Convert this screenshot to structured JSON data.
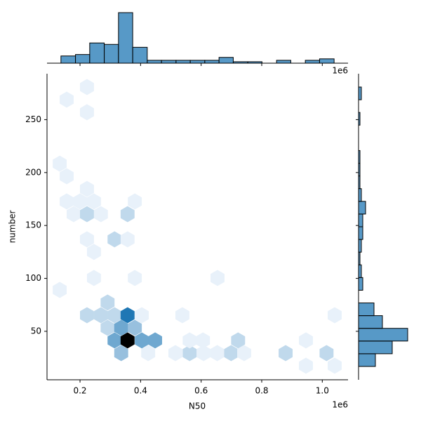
{
  "chart_data": {
    "type": "hexbin",
    "x_label": "N50",
    "y_label": "number",
    "x_offset_text": "1e6",
    "color": "#1f77b4",
    "xlim": [
      0.091,
      1.085
    ],
    "ylim": [
      4.2,
      293.4
    ],
    "xticks": [
      0.2,
      0.4,
      0.6,
      0.8,
      {
        "value": 1,
        "label": "1.0"
      }
    ],
    "yticks": [
      50,
      100,
      150,
      200,
      250
    ],
    "hexbins": {
      "x": [
        0.156,
        0.223,
        0.223,
        0.133,
        0.156,
        0.156,
        0.179,
        0.223,
        0.2,
        0.246,
        0.223,
        0.269,
        0.357,
        0.381,
        0.223,
        0.246,
        0.314,
        0.357,
        0.246,
        0.381,
        0.654,
        0.133,
        0.223,
        0.291,
        0.269,
        0.314,
        0.357,
        0.404,
        0.538,
        0.291,
        0.336,
        0.381,
        0.314,
        0.357,
        0.404,
        0.448,
        0.336,
        0.425,
        0.515,
        0.562,
        0.608,
        0.653,
        0.699,
        0.742,
        0.562,
        0.606,
        0.722,
        0.879,
        0.946,
        0.946,
        1.014,
        1.041,
        1.041
      ],
      "y": [
        268.9,
        280.8,
        257,
        208.4,
        196.5,
        172.7,
        160.7,
        184.5,
        172.7,
        172.7,
        160.7,
        160.7,
        160.7,
        172.7,
        136.9,
        125,
        136.9,
        136.9,
        100.4,
        100.4,
        100.4,
        89.1,
        65.2,
        77.2,
        65.2,
        65.2,
        65.2,
        65.2,
        65.2,
        53.3,
        53.3,
        53.3,
        41.4,
        41.4,
        41.4,
        41.4,
        29.4,
        29.4,
        29.4,
        29.4,
        29.4,
        29.4,
        29.4,
        29.4,
        41.4,
        41.4,
        41.4,
        29.4,
        41.4,
        17.5,
        29.4,
        17.5,
        65.2
      ],
      "counts": [
        1,
        1,
        1,
        1,
        1,
        1,
        1,
        1,
        1,
        1,
        2,
        1,
        2,
        1,
        1,
        1,
        2,
        1,
        1,
        1,
        1,
        1,
        2,
        2,
        2,
        2,
        6,
        1,
        1,
        2,
        4,
        3,
        4,
        10,
        4,
        4,
        3,
        1,
        1,
        2,
        1,
        1,
        2,
        1,
        1,
        1,
        2,
        2,
        1,
        1,
        2,
        1,
        1
      ]
    },
    "x_hist": {
      "bins": [
        0.137,
        0.185,
        0.232,
        0.28,
        0.327,
        0.374,
        0.422,
        0.469,
        0.517,
        0.564,
        0.612,
        0.659,
        0.706,
        0.754,
        0.801,
        0.849,
        0.896,
        0.944,
        0.991,
        1.039
      ],
      "counts": [
        5,
        6,
        14,
        13,
        35,
        11,
        2,
        2,
        2,
        2,
        2,
        4,
        1,
        1,
        0,
        2,
        0,
        2,
        3
      ]
    },
    "y_hist": {
      "bins": [
        16.8,
        28.8,
        40.8,
        52.8,
        64.8,
        76.8,
        88.8,
        100.8,
        112.8,
        124.8,
        136.8,
        148.8,
        160.8,
        172.8,
        184.8,
        196.8,
        208.8,
        220.8,
        232.8,
        244.8,
        256.8,
        268.8,
        280.8
      ],
      "counts": [
        12,
        24,
        35,
        17,
        11,
        0,
        3,
        2,
        1,
        2,
        3,
        3,
        5,
        2,
        1,
        1,
        1,
        0,
        0,
        1,
        0,
        2
      ]
    }
  }
}
